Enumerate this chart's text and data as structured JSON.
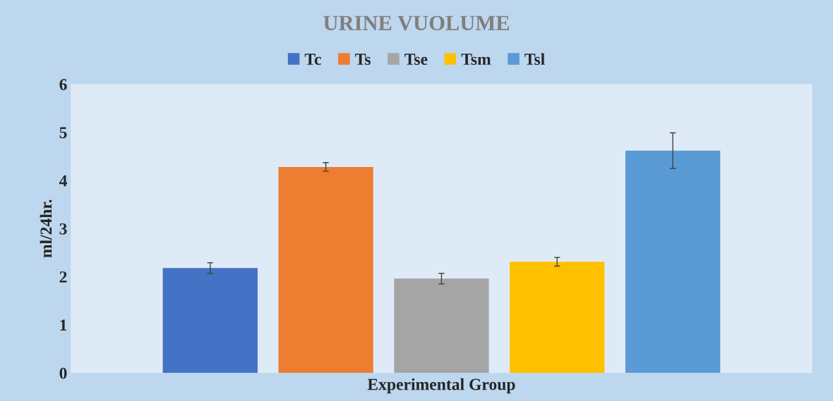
{
  "chart_data": {
    "type": "bar",
    "title": "URINE VUOLUME",
    "xlabel": "Experimental Group",
    "ylabel": "ml/24hr.",
    "categories": [
      null
    ],
    "series": [
      {
        "name": "Tc",
        "color": "#4472c4",
        "values": [
          2.18
        ],
        "errors": [
          0.11
        ]
      },
      {
        "name": "Ts",
        "color": "#ed7d31",
        "values": [
          4.28
        ],
        "errors": [
          0.09
        ]
      },
      {
        "name": "Tse",
        "color": "#a5a5a5",
        "values": [
          1.96
        ],
        "errors": [
          0.11
        ]
      },
      {
        "name": "Tsm",
        "color": "#ffc000",
        "values": [
          2.31
        ],
        "errors": [
          0.09
        ]
      },
      {
        "name": "Tsl",
        "color": "#5b9bd5",
        "values": [
          4.62
        ],
        "errors": [
          0.37
        ]
      }
    ],
    "ylim": [
      0,
      6
    ],
    "yticks": [
      0,
      1,
      2,
      3,
      4,
      5,
      6
    ],
    "grid": false,
    "legend": "top"
  }
}
